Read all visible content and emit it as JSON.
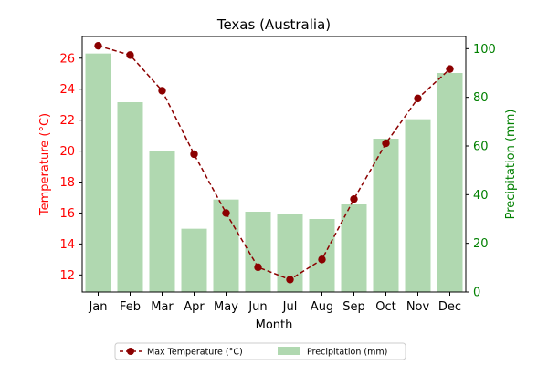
{
  "chart_data": {
    "type": "bar+line",
    "title": "Texas (Australia)",
    "xlabel": "Month",
    "ylabel_left": "Temperature (°C)",
    "ylabel_right": "Precipitation (mm)",
    "categories": [
      "Jan",
      "Feb",
      "Mar",
      "Apr",
      "May",
      "Jun",
      "Jul",
      "Aug",
      "Sep",
      "Oct",
      "Nov",
      "Dec"
    ],
    "ylim_left": [
      10.9,
      27.4
    ],
    "ylim_right": [
      0,
      105
    ],
    "yticks_left": [
      12,
      14,
      16,
      18,
      20,
      22,
      24,
      26
    ],
    "yticks_right": [
      0,
      20,
      40,
      60,
      80,
      100
    ],
    "series": [
      {
        "name": "Max Temperature (°C)",
        "kind": "line",
        "axis": "left",
        "color": "#8b0000",
        "style": "dashed",
        "marker": "circle",
        "values": [
          26.8,
          26.2,
          23.9,
          19.8,
          16.0,
          12.5,
          11.7,
          13.0,
          16.9,
          20.5,
          23.4,
          25.3
        ]
      },
      {
        "name": "Precipitation (mm)",
        "kind": "bar",
        "axis": "right",
        "color": "#b0d8b0",
        "values": [
          98,
          78,
          58,
          26,
          38,
          33,
          32,
          30,
          36,
          63,
          71,
          90
        ]
      }
    ],
    "left_axis_color": "#ff0000",
    "right_axis_color": "#008000",
    "grid": false,
    "legend_position": "bottom-center"
  }
}
